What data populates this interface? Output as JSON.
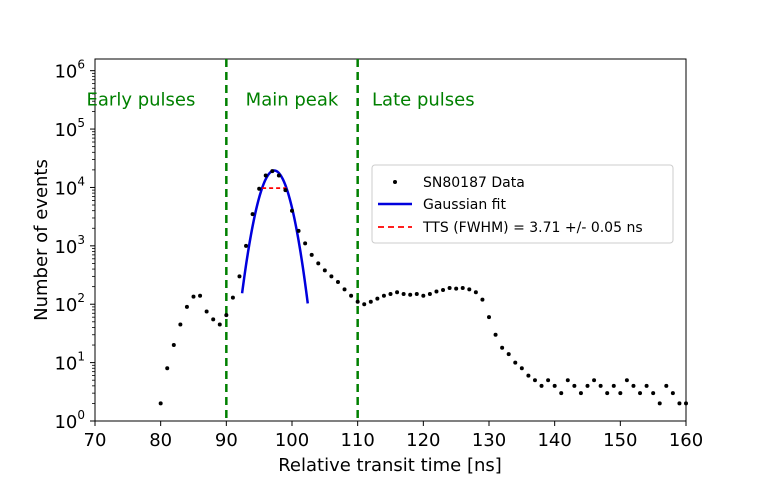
{
  "chart_data": {
    "type": "scatter",
    "xlabel": "Relative transit time [ns]",
    "ylabel": "Number of events",
    "xlim": [
      70,
      160
    ],
    "ylim_log10": [
      0,
      6.2
    ],
    "yscale": "log",
    "x_ticks": [
      70,
      80,
      90,
      100,
      110,
      120,
      130,
      140,
      150,
      160
    ],
    "x_tick_labels": [
      "70",
      "80",
      "90",
      "100",
      "110",
      "120",
      "130",
      "140",
      "150",
      "160"
    ],
    "y_ticks_log10": [
      0,
      1,
      2,
      3,
      4,
      5,
      6
    ],
    "y_tick_labels": [
      {
        "base": "10",
        "exp": "0"
      },
      {
        "base": "10",
        "exp": "1"
      },
      {
        "base": "10",
        "exp": "2"
      },
      {
        "base": "10",
        "exp": "3"
      },
      {
        "base": "10",
        "exp": "4"
      },
      {
        "base": "10",
        "exp": "5"
      },
      {
        "base": "10",
        "exp": "6"
      }
    ],
    "colors": {
      "data": "#000000",
      "fit": "#0000dd",
      "tts": "#ff0000",
      "divider": "#008000",
      "region_text": "#008000"
    },
    "region_dividers_x": [
      90,
      110
    ],
    "regions": [
      {
        "label": "Early pulses",
        "x": 77,
        "y_log10": 5.4
      },
      {
        "label": "Main peak",
        "x": 100,
        "y_log10": 5.4
      },
      {
        "label": "Late pulses",
        "x": 120,
        "y_log10": 5.4
      }
    ],
    "legend": [
      {
        "label": "SN80187 Data",
        "style": "dot"
      },
      {
        "label": "Gaussian fit",
        "style": "line"
      },
      {
        "label": "TTS (FWHM) = 3.71 +/- 0.05 ns",
        "style": "dashed"
      }
    ],
    "gaussian_fit": {
      "peak": 19500,
      "mean": 97.3,
      "sigma": 1.575,
      "x_range": [
        92.4,
        102.4
      ]
    },
    "tts": {
      "x_range": [
        95.45,
        99.15
      ],
      "y": 9750
    },
    "series": [
      {
        "name": "SN80187 Data",
        "x": [
          80,
          81,
          82,
          83,
          84,
          85,
          86,
          87,
          88,
          89,
          90,
          91,
          92,
          93,
          94,
          95,
          96,
          97,
          98,
          99,
          100,
          101,
          102,
          103,
          104,
          105,
          106,
          107,
          108,
          109,
          110,
          111,
          112,
          113,
          114,
          115,
          116,
          117,
          118,
          119,
          120,
          121,
          122,
          123,
          124,
          125,
          126,
          127,
          128,
          129,
          130,
          131,
          132,
          133,
          134,
          135,
          136,
          137,
          138,
          139,
          140,
          141,
          142,
          143,
          144,
          145,
          146,
          147,
          148,
          149,
          150,
          151,
          152,
          153,
          154,
          155,
          156,
          157,
          158,
          159,
          160
        ],
        "y": [
          2,
          8,
          20,
          45,
          90,
          135,
          140,
          75,
          55,
          45,
          65,
          130,
          300,
          1000,
          3500,
          9500,
          16000,
          19000,
          16000,
          9000,
          4000,
          1800,
          1100,
          700,
          500,
          380,
          300,
          240,
          180,
          140,
          110,
          100,
          110,
          125,
          140,
          150,
          160,
          150,
          145,
          150,
          140,
          150,
          165,
          175,
          190,
          185,
          190,
          180,
          160,
          120,
          60,
          30,
          18,
          14,
          10,
          8,
          6,
          5,
          4,
          5,
          4,
          3,
          5,
          4,
          3,
          4,
          5,
          4,
          3,
          4,
          3,
          5,
          4,
          3,
          4,
          3,
          2,
          4,
          3,
          2,
          2
        ]
      }
    ]
  }
}
